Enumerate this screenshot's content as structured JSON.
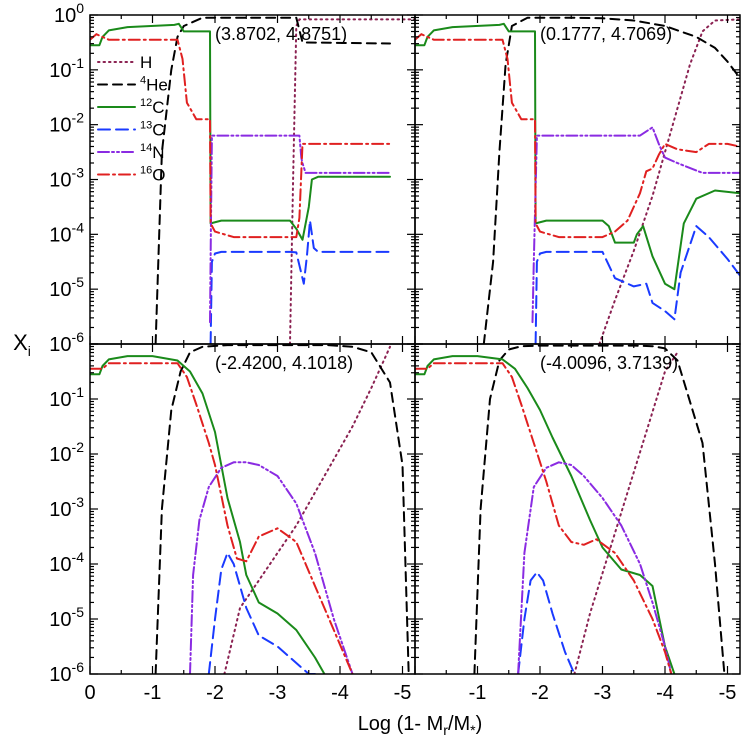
{
  "chart_data": {
    "type": "line",
    "layout": "2x2 grid of panels sharing axes",
    "xlabel_prefix": "Log (1- M",
    "xlabel_sub1": "r",
    "xlabel_mid": "/M",
    "xlabel_sub2": "*",
    "xlabel_suffix": ")",
    "ylabel": "X",
    "ylabel_sub": "i",
    "xlim": [
      0,
      -5.2
    ],
    "ylim_log10": [
      -6,
      0
    ],
    "x_ticks": [
      0,
      -1,
      -2,
      -3,
      -4,
      -5
    ],
    "x_tick_labels": [
      "0",
      "-1",
      "-2",
      "-3",
      "-4",
      "-5"
    ],
    "y_ticks_log10": [
      -6,
      -5,
      -4,
      -3,
      -2,
      -1,
      0
    ],
    "y_tick_labels": [
      {
        "base": "10",
        "exp": "-6"
      },
      {
        "base": "10",
        "exp": "-5"
      },
      {
        "base": "10",
        "exp": "-4"
      },
      {
        "base": "10",
        "exp": "-3"
      },
      {
        "base": "10",
        "exp": "-2"
      },
      {
        "base": "10",
        "exp": "-1"
      },
      {
        "base": "10",
        "exp": "0"
      }
    ],
    "legend": [
      {
        "key": "H",
        "sup": "",
        "name": "H",
        "color": "#8B2252",
        "dash": "dot"
      },
      {
        "key": "He4",
        "sup": "4",
        "name": "He",
        "color": "#000000",
        "dash": "dash"
      },
      {
        "key": "C12",
        "sup": "12",
        "name": "C",
        "color": "#1A8A1A",
        "dash": "solid"
      },
      {
        "key": "C13",
        "sup": "13",
        "name": "C",
        "color": "#1A3AFF",
        "dash": "longdash"
      },
      {
        "key": "N14",
        "sup": "14",
        "name": "N",
        "color": "#8A2BE2",
        "dash": "dashdotdot"
      },
      {
        "key": "O16",
        "sup": "16",
        "name": "O",
        "color": "#E02020",
        "dash": "dashdot"
      }
    ],
    "panels": [
      {
        "annotation": "(3.8702, 4.8751)",
        "series": [
          {
            "key": "H",
            "x": [
              -3.2,
              -3.25,
              -3.3,
              -3.35,
              -5.2
            ],
            "log10y": [
              -6,
              -3.0,
              -0.2,
              -0.08,
              -0.08
            ]
          },
          {
            "key": "He4",
            "x": [
              -1.05,
              -1.15,
              -1.3,
              -1.4,
              -1.5,
              -1.8,
              -2.0,
              -3.3,
              -3.4,
              -4.8
            ],
            "log10y": [
              -6,
              -2.5,
              -1.0,
              -0.4,
              -0.2,
              -0.05,
              -0.05,
              -0.05,
              -0.5,
              -0.52
            ]
          },
          {
            "key": "C12",
            "x": [
              0,
              -0.15,
              -0.2,
              -0.3,
              -0.6,
              -1.35,
              -1.42,
              -1.5,
              -1.55,
              -1.92,
              -1.93,
              -2.1,
              -3.2,
              -3.3,
              -3.4,
              -3.5,
              -3.55,
              -3.65,
              -4.8
            ],
            "log10y": [
              -0.55,
              -0.55,
              -0.4,
              -0.28,
              -0.22,
              -0.18,
              -0.16,
              -0.3,
              -0.3,
              -0.3,
              -3.8,
              -3.75,
              -3.75,
              -3.9,
              -4.1,
              -3.5,
              -3.0,
              -2.95,
              -2.95
            ]
          },
          {
            "key": "C13",
            "x": [
              -1.93,
              -1.95,
              -2.0,
              -2.1,
              -3.2,
              -3.3,
              -3.42,
              -3.47,
              -3.52,
              -3.58,
              -3.65,
              -4.8
            ],
            "log10y": [
              -6,
              -4.5,
              -4.35,
              -4.32,
              -4.32,
              -4.33,
              -4.9,
              -4.4,
              -3.75,
              -4.25,
              -4.32,
              -4.32
            ]
          },
          {
            "key": "N14",
            "x": [
              -1.92,
              -1.935,
              -1.95,
              -3.3,
              -3.35,
              -3.38,
              -3.4,
              -3.45,
              -4.8
            ],
            "log10y": [
              -5.6,
              -3.9,
              -2.2,
              -2.2,
              -2.2,
              -2.6,
              -2.7,
              -2.88,
              -2.88
            ]
          },
          {
            "key": "O16",
            "x": [
              0,
              -0.1,
              -0.3,
              -0.8,
              -1.4,
              -1.48,
              -1.55,
              -1.7,
              -1.92,
              -1.93,
              -2.0,
              -2.3,
              -3.3,
              -3.35,
              -3.4,
              -4.8
            ],
            "log10y": [
              -0.45,
              -0.35,
              -0.45,
              -0.45,
              -0.45,
              -0.8,
              -1.6,
              -1.9,
              -1.9,
              -3.8,
              -3.95,
              -4.05,
              -4.05,
              -3.7,
              -2.35,
              -2.35
            ]
          }
        ]
      },
      {
        "annotation": "(0.1777, 4.7069)",
        "series": [
          {
            "key": "H",
            "x": [
              -2.95,
              -3.2,
              -3.5,
              -3.8,
              -4.0,
              -4.2,
              -4.4,
              -4.6,
              -4.8,
              -5.2
            ],
            "log10y": [
              -6,
              -5.2,
              -4.3,
              -3.3,
              -2.5,
              -1.7,
              -0.9,
              -0.3,
              -0.1,
              -0.08
            ]
          },
          {
            "key": "He4",
            "x": [
              -1.1,
              -1.25,
              -1.35,
              -1.45,
              -1.55,
              -1.8,
              -2.5,
              -3.0,
              -3.5,
              -4.0,
              -4.5,
              -4.8,
              -5.0,
              -5.2
            ],
            "log10y": [
              -6,
              -4.5,
              -2.5,
              -0.9,
              -0.2,
              -0.05,
              -0.05,
              -0.06,
              -0.1,
              -0.2,
              -0.4,
              -0.6,
              -0.85,
              -1.15
            ]
          },
          {
            "key": "C12",
            "x": [
              0,
              -0.15,
              -0.2,
              -0.3,
              -0.6,
              -1.35,
              -1.42,
              -1.5,
              -1.55,
              -1.92,
              -1.93,
              -2.1,
              -3.0,
              -3.1,
              -3.2,
              -3.5,
              -3.55,
              -3.65,
              -3.8,
              -4.0,
              -4.15,
              -4.3,
              -4.5,
              -4.8,
              -5.2
            ],
            "log10y": [
              -0.55,
              -0.55,
              -0.4,
              -0.28,
              -0.22,
              -0.18,
              -0.16,
              -0.3,
              -0.3,
              -0.3,
              -3.8,
              -3.75,
              -3.75,
              -3.85,
              -4.15,
              -4.15,
              -4.0,
              -3.85,
              -4.4,
              -4.9,
              -5.0,
              -3.8,
              -3.35,
              -3.2,
              -3.25
            ]
          },
          {
            "key": "C13",
            "x": [
              -1.93,
              -1.95,
              -2.0,
              -2.1,
              -3.0,
              -3.2,
              -3.5,
              -3.7,
              -3.8,
              -4.0,
              -4.15,
              -4.25,
              -4.5,
              -4.7,
              -5.0,
              -5.2
            ],
            "log10y": [
              -6,
              -4.5,
              -4.35,
              -4.32,
              -4.32,
              -4.8,
              -4.95,
              -4.9,
              -5.25,
              -5.4,
              -5.55,
              -4.7,
              -3.85,
              -4.05,
              -4.45,
              -4.75
            ]
          },
          {
            "key": "N14",
            "x": [
              -1.88,
              -1.9,
              -1.95,
              -2.2,
              -3.0,
              -3.6,
              -3.8,
              -3.9,
              -4.0,
              -4.2,
              -4.6,
              -5.2
            ],
            "log10y": [
              -5.6,
              -4.5,
              -2.2,
              -2.2,
              -2.2,
              -2.2,
              -2.05,
              -2.35,
              -2.6,
              -2.7,
              -2.88,
              -2.88
            ]
          },
          {
            "key": "O16",
            "x": [
              0,
              -0.1,
              -0.3,
              -0.8,
              -1.4,
              -1.48,
              -1.55,
              -1.7,
              -1.92,
              -1.93,
              -2.0,
              -2.3,
              -3.0,
              -3.2,
              -3.4,
              -3.6,
              -3.7,
              -3.8,
              -3.9,
              -4.0,
              -4.2,
              -4.5,
              -4.7,
              -5.0,
              -5.2
            ],
            "log10y": [
              -0.45,
              -0.35,
              -0.45,
              -0.45,
              -0.45,
              -0.8,
              -1.6,
              -1.9,
              -1.9,
              -3.8,
              -3.95,
              -4.05,
              -4.05,
              -3.95,
              -3.75,
              -3.25,
              -2.85,
              -2.8,
              -2.55,
              -2.35,
              -2.45,
              -2.5,
              -2.35,
              -2.35,
              -2.4
            ]
          }
        ]
      },
      {
        "annotation": "(-2.4200, 4.1018)",
        "series": [
          {
            "key": "H",
            "x": [
              -2.15,
              -2.4,
              -2.7,
              -3.0,
              -3.3,
              -3.6,
              -3.9,
              -4.2,
              -4.5,
              -4.7,
              -4.8
            ],
            "log10y": [
              -6,
              -4.8,
              -4.3,
              -3.8,
              -3.3,
              -2.7,
              -2.1,
              -1.5,
              -0.8,
              -0.3,
              -0.05
            ]
          },
          {
            "key": "He4",
            "x": [
              -1.05,
              -1.15,
              -1.3,
              -1.45,
              -1.6,
              -1.8,
              -2.2,
              -2.8,
              -3.3,
              -3.8,
              -4.2,
              -4.5,
              -4.8,
              -5.0,
              -5.1
            ],
            "log10y": [
              -6,
              -3.0,
              -1.2,
              -0.5,
              -0.15,
              -0.05,
              -0.02,
              -0.02,
              -0.02,
              -0.02,
              -0.05,
              -0.15,
              -0.7,
              -2.2,
              -6
            ]
          },
          {
            "key": "C12",
            "x": [
              0,
              -0.15,
              -0.2,
              -0.3,
              -0.6,
              -1.0,
              -1.4,
              -1.6,
              -1.8,
              -2.0,
              -2.2,
              -2.4,
              -2.5,
              -2.7,
              -3.0,
              -3.3,
              -3.6,
              -3.75
            ],
            "log10y": [
              -0.55,
              -0.55,
              -0.4,
              -0.28,
              -0.22,
              -0.22,
              -0.3,
              -0.5,
              -0.9,
              -1.6,
              -2.8,
              -3.6,
              -4.2,
              -4.7,
              -4.9,
              -5.2,
              -5.7,
              -6
            ]
          },
          {
            "key": "C13",
            "x": [
              -1.9,
              -2.0,
              -2.1,
              -2.2,
              -2.3,
              -2.5,
              -2.7,
              -3.0,
              -3.3,
              -3.5,
              -3.6
            ],
            "log10y": [
              -6,
              -5.0,
              -4.1,
              -3.8,
              -4.0,
              -4.8,
              -5.3,
              -5.5,
              -5.8,
              -6,
              -6
            ]
          },
          {
            "key": "N14",
            "x": [
              -1.6,
              -1.65,
              -1.75,
              -1.9,
              -2.1,
              -2.3,
              -2.5,
              -2.7,
              -3.0,
              -3.3,
              -3.6,
              -3.9,
              -4.2
            ],
            "log10y": [
              -6,
              -4.2,
              -3.2,
              -2.6,
              -2.25,
              -2.15,
              -2.15,
              -2.2,
              -2.4,
              -2.9,
              -3.8,
              -5.0,
              -6
            ]
          },
          {
            "key": "O16",
            "x": [
              0,
              -0.2,
              -0.3,
              -0.8,
              -1.4,
              -1.55,
              -1.7,
              -1.9,
              -2.0,
              -2.2,
              -2.35,
              -2.5,
              -2.7,
              -3.0,
              -3.3,
              -3.6,
              -3.9,
              -4.2
            ],
            "log10y": [
              -0.45,
              -0.45,
              -0.35,
              -0.35,
              -0.35,
              -0.6,
              -1.1,
              -1.8,
              -2.2,
              -3.3,
              -3.9,
              -3.95,
              -3.5,
              -3.35,
              -3.6,
              -4.4,
              -5.2,
              -6
            ]
          }
        ]
      },
      {
        "annotation": "(-4.0096, 3.7139)",
        "series": [
          {
            "key": "H",
            "x": [
              -2.55,
              -2.8,
              -3.1,
              -3.4,
              -3.7,
              -4.0,
              -4.2
            ],
            "log10y": [
              -6,
              -4.9,
              -3.8,
              -2.7,
              -1.6,
              -0.5,
              -0.15
            ]
          },
          {
            "key": "He4",
            "x": [
              -0.95,
              -1.05,
              -1.2,
              -1.35,
              -1.5,
              -1.7,
              -2.0,
              -2.5,
              -3.0,
              -3.5,
              -3.8,
              -4.0,
              -4.2,
              -4.6,
              -4.8,
              -4.95
            ],
            "log10y": [
              -6,
              -3.0,
              -1.0,
              -0.3,
              -0.1,
              -0.04,
              -0.03,
              -0.03,
              -0.03,
              -0.03,
              -0.04,
              -0.08,
              -0.3,
              -1.8,
              -4.0,
              -6
            ]
          },
          {
            "key": "C12",
            "x": [
              0,
              -0.15,
              -0.2,
              -0.3,
              -0.6,
              -1.0,
              -1.4,
              -1.6,
              -1.8,
              -2.0,
              -2.2,
              -2.5,
              -2.8,
              -3.0,
              -3.3,
              -3.6,
              -3.8,
              -4.0,
              -4.15
            ],
            "log10y": [
              -0.55,
              -0.55,
              -0.4,
              -0.28,
              -0.22,
              -0.22,
              -0.28,
              -0.45,
              -0.8,
              -1.2,
              -1.7,
              -2.4,
              -3.2,
              -3.7,
              -4.1,
              -4.2,
              -4.4,
              -5.5,
              -6
            ]
          },
          {
            "key": "C13",
            "x": [
              -1.65,
              -1.75,
              -1.85,
              -1.95,
              -2.05,
              -2.2,
              -2.4,
              -2.55
            ],
            "log10y": [
              -6,
              -5.0,
              -4.3,
              -4.15,
              -4.3,
              -4.9,
              -5.6,
              -6
            ]
          },
          {
            "key": "N14",
            "x": [
              -1.65,
              -1.75,
              -1.9,
              -2.1,
              -2.3,
              -2.5,
              -2.7,
              -3.0,
              -3.3,
              -3.6,
              -3.8,
              -4.0,
              -4.1
            ],
            "log10y": [
              -6,
              -3.8,
              -2.6,
              -2.25,
              -2.15,
              -2.2,
              -2.4,
              -2.8,
              -3.3,
              -4.0,
              -4.7,
              -5.5,
              -6
            ]
          },
          {
            "key": "O16",
            "x": [
              0,
              -0.2,
              -0.3,
              -0.8,
              -1.4,
              -1.55,
              -1.7,
              -1.9,
              -2.1,
              -2.3,
              -2.5,
              -2.7,
              -2.9,
              -3.2,
              -3.5,
              -3.8,
              -4.0,
              -4.1
            ],
            "log10y": [
              -0.45,
              -0.45,
              -0.35,
              -0.35,
              -0.35,
              -0.6,
              -1.1,
              -1.8,
              -2.5,
              -3.3,
              -3.6,
              -3.65,
              -3.55,
              -3.8,
              -4.3,
              -5.0,
              -5.6,
              -6
            ]
          }
        ]
      }
    ]
  }
}
